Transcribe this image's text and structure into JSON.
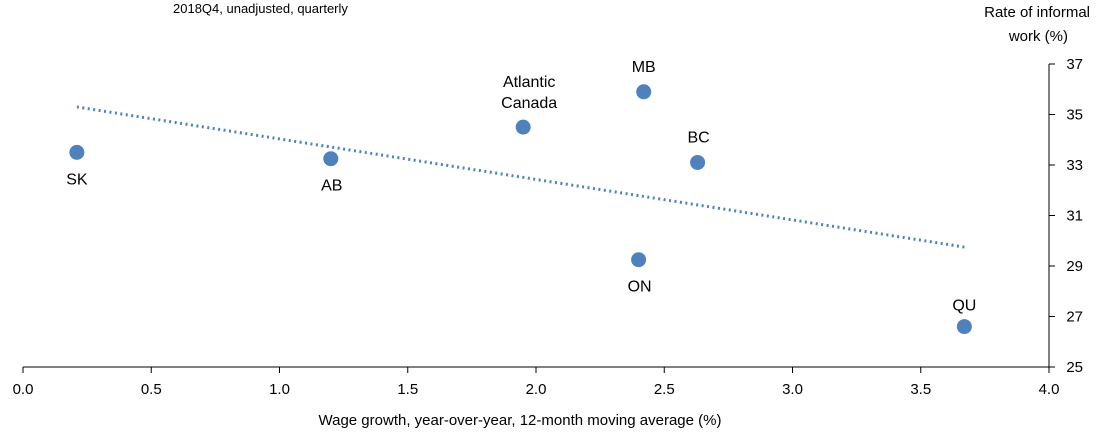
{
  "chart_data": {
    "type": "scatter",
    "subtitle": "2018Q4, unadjusted, quarterly",
    "xlabel": "Wage growth, year-over-year, 12-month moving average (%)",
    "ylabel_lines": [
      "Rate of informal",
      "work (%)"
    ],
    "xlim": [
      0.0,
      4.0
    ],
    "ylim": [
      25,
      37
    ],
    "xticks": [
      "0.0",
      "0.5",
      "1.0",
      "1.5",
      "2.0",
      "2.5",
      "3.0",
      "3.5",
      "4.0"
    ],
    "yticks": [
      "25",
      "27",
      "29",
      "31",
      "33",
      "35",
      "37"
    ],
    "grid": false,
    "point_color": "#4f81bd",
    "trend_color": "#4f81bd",
    "points": [
      {
        "label": "SK",
        "x": 0.21,
        "y": 33.5
      },
      {
        "label": "AB",
        "x": 1.2,
        "y": 33.25
      },
      {
        "label_lines": [
          "Atlantic",
          "Canada"
        ],
        "x": 1.95,
        "y": 34.5
      },
      {
        "label": "MB",
        "x": 2.42,
        "y": 35.9
      },
      {
        "label": "BC",
        "x": 2.63,
        "y": 33.1
      },
      {
        "label": "ON",
        "x": 2.4,
        "y": 29.25
      },
      {
        "label": "QU",
        "x": 3.67,
        "y": 26.6
      }
    ],
    "trendline": {
      "x": [
        0.21,
        3.67
      ],
      "y": [
        35.3,
        29.75
      ]
    }
  }
}
